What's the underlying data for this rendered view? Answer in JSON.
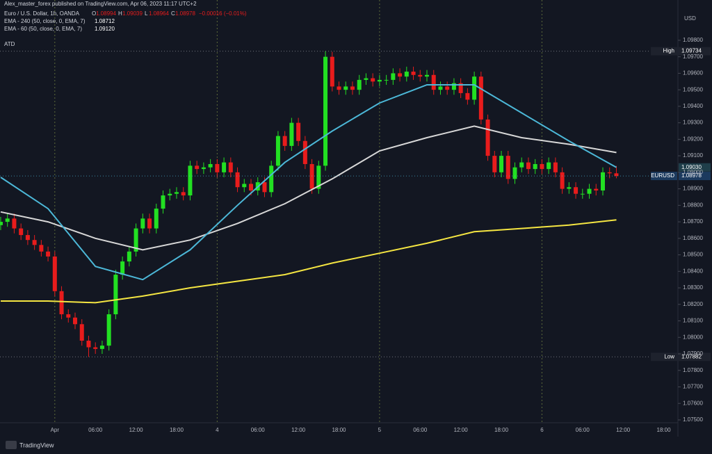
{
  "header": {
    "publisher": "Alex_master_forex published on TradingView.com, Apr 06, 2023 11:17 UTC+2",
    "symbol": "Euro / U.S. Dollar, 1h, OANDA",
    "ohlc_labels": [
      "O",
      "H",
      "L",
      "C"
    ],
    "change": "−0.00016 (−0.01%)",
    "indicator": "ATD"
  },
  "currency": "USD",
  "footer": "TradingView",
  "price_tags": {
    "high": "High",
    "low": "Low",
    "symbol": "EURUSD"
  },
  "chart_data": {
    "type": "candlestick",
    "up_color": "#22e022",
    "down_color": "#e81c1c",
    "xlim": [
      -0.1,
      100.1
    ],
    "xticks": [
      {
        "value": 8,
        "label": "Apr"
      },
      {
        "value": 14,
        "label": "06:00"
      },
      {
        "value": 20,
        "label": "12:00"
      },
      {
        "value": 26,
        "label": "18:00"
      },
      {
        "value": 32,
        "label": "4"
      },
      {
        "value": 38,
        "label": "06:00"
      },
      {
        "value": 44,
        "label": "12:00"
      },
      {
        "value": 50,
        "label": "18:00"
      },
      {
        "value": 56,
        "label": "5"
      },
      {
        "value": 62,
        "label": "06:00"
      },
      {
        "value": 68,
        "label": "12:00"
      },
      {
        "value": 74,
        "label": "18:00"
      },
      {
        "value": 80,
        "label": "6"
      },
      {
        "value": 86,
        "label": "06:00"
      },
      {
        "value": 92,
        "label": "12:00"
      },
      {
        "value": 98,
        "label": "18:00"
      }
    ],
    "ylim": [
      1.07483,
      1.10044
    ],
    "yticks": [
      {
        "value": 1.075,
        "label": "1.07500"
      },
      {
        "value": 1.076,
        "label": "1.07600"
      },
      {
        "value": 1.077,
        "label": "1.07700"
      },
      {
        "value": 1.078,
        "label": "1.07800"
      },
      {
        "value": 1.079,
        "label": "1.07900"
      },
      {
        "value": 1.08,
        "label": "1.08000"
      },
      {
        "value": 1.081,
        "label": "1.08100"
      },
      {
        "value": 1.082,
        "label": "1.08200"
      },
      {
        "value": 1.083,
        "label": "1.08300"
      },
      {
        "value": 1.084,
        "label": "1.08400"
      },
      {
        "value": 1.085,
        "label": "1.08500"
      },
      {
        "value": 1.086,
        "label": "1.08600"
      },
      {
        "value": 1.087,
        "label": "1.08700"
      },
      {
        "value": 1.088,
        "label": "1.08800"
      },
      {
        "value": 1.089,
        "label": "1.08900"
      },
      {
        "value": 1.09,
        "label": "1.09000"
      },
      {
        "value": 1.091,
        "label": "1.09100"
      },
      {
        "value": 1.092,
        "label": "1.09200"
      },
      {
        "value": 1.093,
        "label": "1.09300"
      },
      {
        "value": 1.094,
        "label": "1.09400"
      },
      {
        "value": 1.095,
        "label": "1.09500"
      },
      {
        "value": 1.096,
        "label": "1.09600"
      },
      {
        "value": 1.097,
        "label": "1.09700"
      },
      {
        "value": 1.098,
        "label": "1.09800"
      }
    ],
    "open": [
      1.0868,
      1.087,
      1.0872,
      1.0866,
      1.0862,
      1.0859,
      1.0856,
      1.0852,
      1.0849,
      1.0828,
      1.0814,
      1.0812,
      1.0808,
      1.0798,
      1.0794,
      1.0793,
      1.0795,
      1.0814,
      1.0838,
      1.0846,
      1.0852,
      1.0866,
      1.0872,
      1.0866,
      1.0878,
      1.0886,
      1.0887,
      1.0888,
      1.0886,
      1.0904,
      1.0902,
      1.0903,
      1.0905,
      1.09,
      1.0906,
      1.09,
      1.0891,
      1.0893,
      1.0889,
      1.0894,
      1.0888,
      1.0904,
      1.0922,
      1.0916,
      1.093,
      1.0919,
      1.0905,
      1.089,
      1.0904,
      1.097,
      1.0952,
      1.095,
      1.0952,
      1.095,
      1.0956,
      1.0957,
      1.0955,
      1.0956,
      1.0956,
      1.096,
      1.0958,
      1.0961,
      1.0959,
      1.0958,
      1.0959,
      1.095,
      1.0952,
      1.095,
      1.0954,
      1.0948,
      1.0944,
      1.0958,
      1.0932,
      1.091,
      1.09,
      1.091,
      1.0896,
      1.0903,
      1.0906,
      1.0902,
      1.0905,
      1.0902,
      1.0906,
      1.09,
      1.089,
      1.0891,
      1.0887,
      1.0887,
      1.089,
      1.0889,
      1.09,
      1.08994
    ],
    "high": [
      1.0873,
      1.0875,
      1.0875,
      1.0869,
      1.0865,
      1.0862,
      1.0859,
      1.0855,
      1.0852,
      1.0831,
      1.0817,
      1.0815,
      1.0811,
      1.0801,
      1.0797,
      1.0798,
      1.0817,
      1.0841,
      1.0849,
      1.0855,
      1.0869,
      1.0875,
      1.0875,
      1.0881,
      1.0889,
      1.089,
      1.0891,
      1.0891,
      1.0907,
      1.0907,
      1.0906,
      1.0908,
      1.0908,
      1.0909,
      1.0909,
      1.0903,
      1.0896,
      1.0896,
      1.0897,
      1.0897,
      1.0907,
      1.0925,
      1.0925,
      1.0933,
      1.0933,
      1.0922,
      1.0908,
      1.0907,
      1.09734,
      1.0973,
      1.0955,
      1.0955,
      1.0955,
      1.0959,
      1.096,
      1.096,
      1.0959,
      1.0959,
      1.0963,
      1.0963,
      1.0964,
      1.0964,
      1.0962,
      1.0962,
      1.0962,
      1.0955,
      1.0955,
      1.0957,
      1.0957,
      1.0951,
      1.0961,
      1.0961,
      1.0935,
      1.0913,
      1.0913,
      1.0913,
      1.0906,
      1.0909,
      1.0909,
      1.0908,
      1.0908,
      1.0909,
      1.0909,
      1.0903,
      1.0894,
      1.0894,
      1.089,
      1.0893,
      1.0893,
      1.0903,
      1.0903,
      1.09039
    ],
    "low": [
      1.0865,
      1.0867,
      1.0863,
      1.0859,
      1.0856,
      1.0853,
      1.0849,
      1.0846,
      1.0825,
      1.0811,
      1.0809,
      1.0805,
      1.0795,
      1.07882,
      1.079,
      1.079,
      1.0792,
      1.0811,
      1.0835,
      1.0843,
      1.0849,
      1.0863,
      1.0863,
      1.0863,
      1.0875,
      1.0883,
      1.0884,
      1.0883,
      1.0883,
      1.0899,
      1.0899,
      1.09,
      1.0897,
      1.0897,
      1.0897,
      1.0888,
      1.0888,
      1.0886,
      1.0886,
      1.0885,
      1.0885,
      1.0901,
      1.0913,
      1.0913,
      1.0916,
      1.0902,
      1.0887,
      1.0887,
      1.0901,
      1.0949,
      1.0947,
      1.0947,
      1.0947,
      1.0947,
      1.0953,
      1.0952,
      1.0952,
      1.0953,
      1.0953,
      1.0955,
      1.0955,
      1.0956,
      1.0955,
      1.0955,
      1.0947,
      1.0947,
      1.0947,
      1.0947,
      1.0945,
      1.0941,
      1.0941,
      1.0929,
      1.0907,
      1.0897,
      1.0897,
      1.0893,
      1.0893,
      1.09,
      1.0899,
      1.0899,
      1.0899,
      1.0899,
      1.0897,
      1.0887,
      1.0887,
      1.0884,
      1.0884,
      1.0884,
      1.0886,
      1.0886,
      1.08964,
      1.08964
    ],
    "close": [
      1.087,
      1.0872,
      1.0866,
      1.0862,
      1.0859,
      1.0856,
      1.0852,
      1.0849,
      1.0828,
      1.0814,
      1.0812,
      1.0808,
      1.0798,
      1.0794,
      1.0793,
      1.0795,
      1.0814,
      1.0838,
      1.0846,
      1.0852,
      1.0866,
      1.0872,
      1.0866,
      1.0878,
      1.0886,
      1.0887,
      1.0888,
      1.0886,
      1.0904,
      1.0902,
      1.0903,
      1.0905,
      1.09,
      1.0906,
      1.09,
      1.0891,
      1.0893,
      1.0889,
      1.0894,
      1.0888,
      1.0904,
      1.0922,
      1.0916,
      1.093,
      1.0919,
      1.0905,
      1.089,
      1.0904,
      1.097,
      1.0952,
      1.095,
      1.0952,
      1.095,
      1.0956,
      1.0957,
      1.0955,
      1.0956,
      1.0956,
      1.096,
      1.0958,
      1.0961,
      1.0959,
      1.0958,
      1.0959,
      1.095,
      1.0952,
      1.095,
      1.0954,
      1.0948,
      1.0944,
      1.0958,
      1.0932,
      1.091,
      1.09,
      1.091,
      1.0896,
      1.0903,
      1.0906,
      1.0902,
      1.0905,
      1.0902,
      1.0906,
      1.09,
      1.089,
      1.0891,
      1.0887,
      1.0887,
      1.089,
      1.0889,
      1.09,
      1.08994,
      1.08978
    ],
    "series": [
      {
        "name": "EMA - 240 (50, close, 0, EMA, 7)",
        "value_label": "1.08712",
        "color": "#f5e642",
        "values": [
          1.0822,
          1.0822,
          1.0821,
          1.0825,
          1.083,
          1.0834,
          1.0838,
          1.0845,
          1.0851,
          1.0857,
          1.0864,
          1.0866,
          1.0868,
          1.08712
        ]
      },
      {
        "name": "EMA - 60 (50, close, 0, EMA, 7)",
        "value_label": "1.09120",
        "color": "#d8d8d8",
        "values": [
          1.0876,
          1.087,
          1.086,
          1.0853,
          1.0859,
          1.0869,
          1.0881,
          1.0896,
          1.0913,
          1.0921,
          1.0928,
          1.0921,
          1.0917,
          1.0912
        ]
      },
      {
        "value_label": "1.09030",
        "color": "#4cb8d8",
        "values": [
          1.0897,
          1.0878,
          1.0843,
          1.0835,
          1.0853,
          1.088,
          1.0906,
          1.0925,
          1.0942,
          1.0953,
          1.0953,
          1.0936,
          1.0919,
          1.0903
        ]
      }
    ]
  }
}
